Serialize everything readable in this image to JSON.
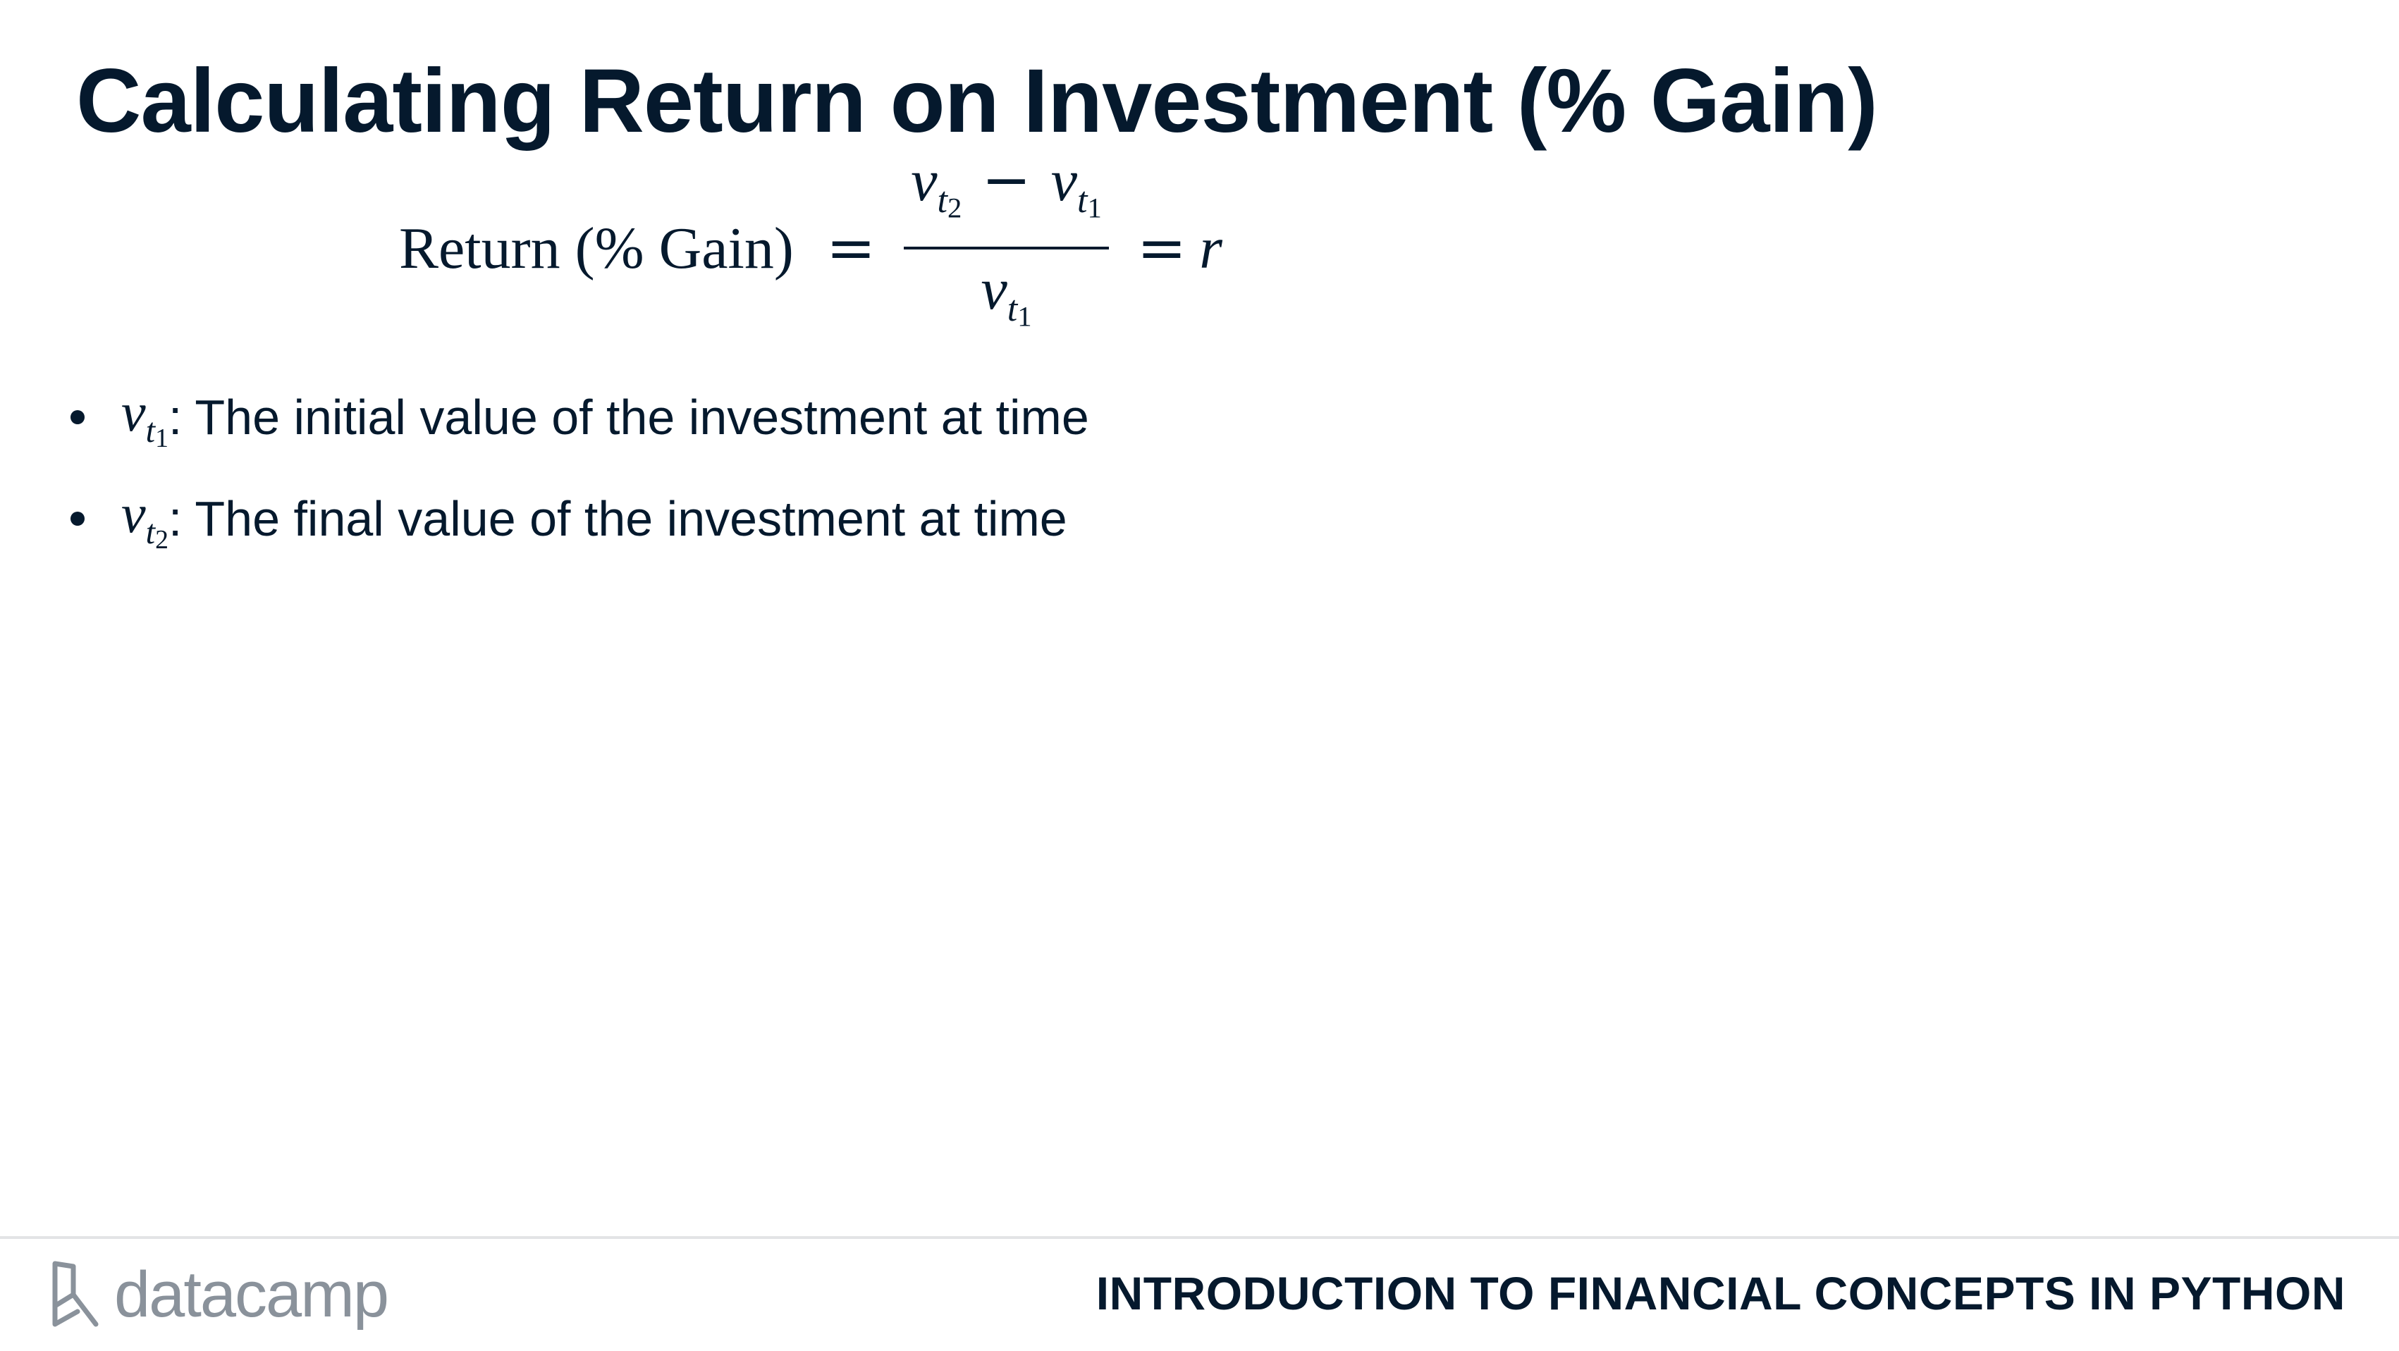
{
  "slide": {
    "title": "Calculating Return on Investment (% Gain)"
  },
  "formula": {
    "lhs": "Return (% Gain)",
    "equals": "=",
    "numerator": {
      "v": "v",
      "t": "t",
      "first_index": "2",
      "minus": "−",
      "second_index": "1"
    },
    "denominator_index": "1",
    "rhs_equals": "=",
    "result": "r"
  },
  "bullets": [
    {
      "var": "v",
      "sub_t": "t",
      "sub_index": "1",
      "colon": ":",
      "text": "The initial value of the investment at time"
    },
    {
      "var": "v",
      "sub_t": "t",
      "sub_index": "2",
      "colon": ":",
      "text": "The final value of the investment at time"
    }
  ],
  "footer": {
    "logo_text": "datacamp",
    "logo_icon": "datacamp-logo-icon",
    "course_name": "INTRODUCTION TO FINANCIAL CONCEPTS IN PYTHON"
  },
  "colors": {
    "text": "#05192d",
    "logo": "#8a929b",
    "rule": "#e3e4e6"
  }
}
